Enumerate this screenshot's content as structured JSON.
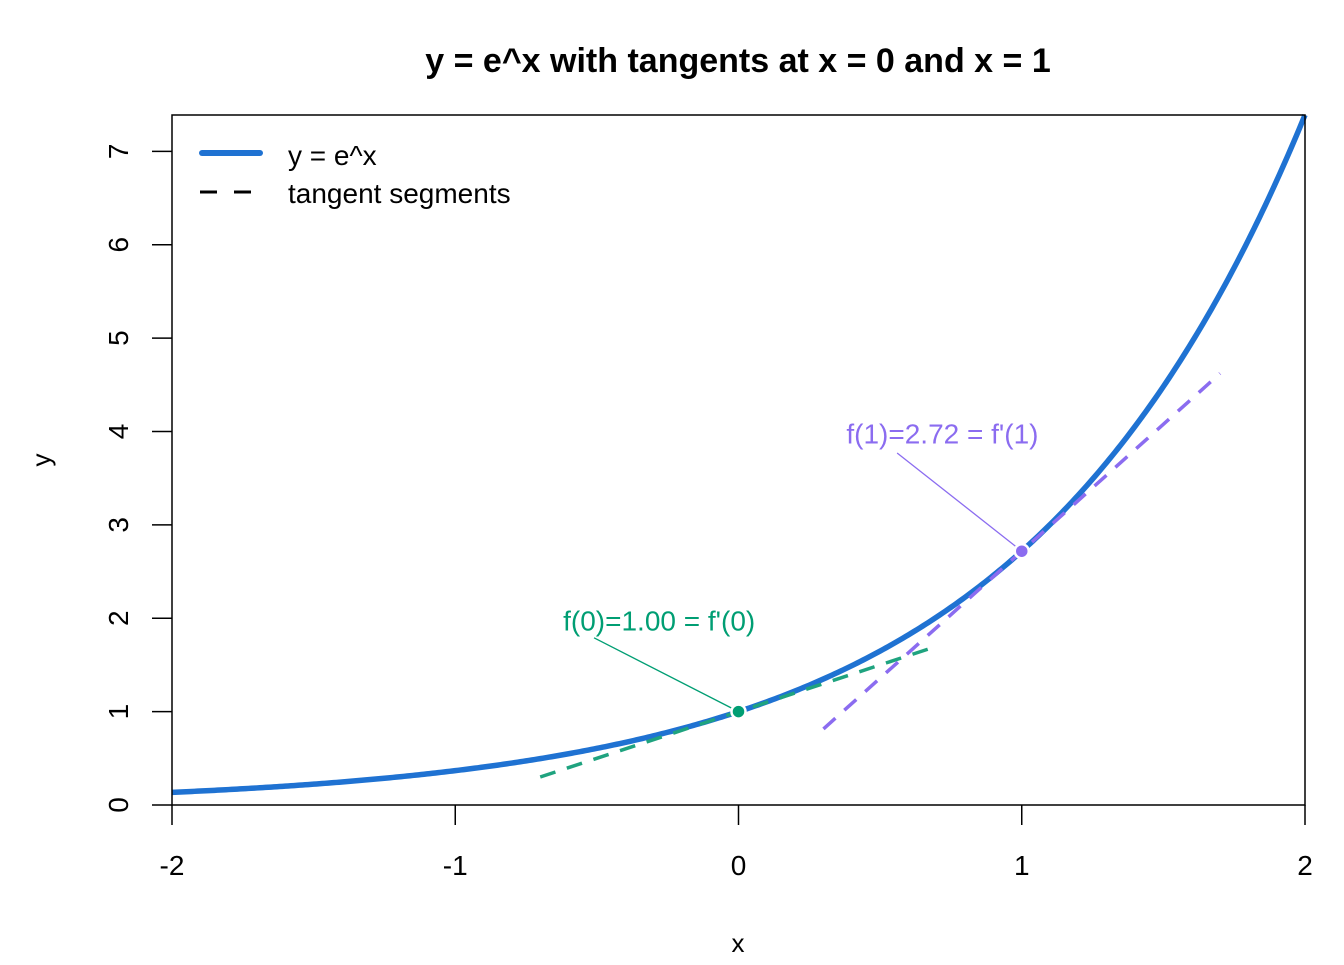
{
  "chart_data": {
    "type": "line",
    "title": "y = e^x with tangents at x = 0 and x = 1",
    "xlabel": "x",
    "ylabel": "y",
    "xlim": [
      -2,
      2
    ],
    "ylim": [
      0,
      7.389
    ],
    "xticks": [
      "-2",
      "-1",
      "0",
      "1",
      "2"
    ],
    "xtick_values": [
      -2,
      -1,
      0,
      1,
      2
    ],
    "yticks": [
      "0",
      "1",
      "2",
      "3",
      "4",
      "5",
      "6",
      "7"
    ],
    "ytick_values": [
      0,
      1,
      2,
      3,
      4,
      5,
      6,
      7
    ],
    "grid": false,
    "legend_position": "top-left",
    "legend": [
      {
        "label": "y = e^x",
        "style": "solid",
        "color": "#1F72D2"
      },
      {
        "label": "tangent segments",
        "style": "dashed",
        "color": "#000000"
      }
    ],
    "series": [
      {
        "name": "y = e^x",
        "function": "exp",
        "x_range": [
          -2,
          2
        ],
        "color": "#1F72D2"
      },
      {
        "name": "tangent at x=0",
        "x": [
          -0.7,
          0.7
        ],
        "y": [
          0.3,
          1.7
        ],
        "color": "#1FA37F"
      },
      {
        "name": "tangent at x=1",
        "x": [
          0.3,
          1.7
        ],
        "y": [
          0.815,
          4.621
        ],
        "color": "#8B6CF0"
      }
    ],
    "points": [
      {
        "x": 0,
        "y": 1,
        "color": "#009E73"
      },
      {
        "x": 1,
        "y": 2.718,
        "color": "#8B6CF0"
      }
    ],
    "annotations": [
      {
        "text": "f(0)=1.00 = f'(0)",
        "x": -0.28,
        "y": 1.87,
        "color": "#009E73",
        "points_to": [
          0,
          1
        ]
      },
      {
        "text": "f(1)=2.72 = f'(1)",
        "x": 0.72,
        "y": 3.87,
        "color": "#8B6CF0",
        "points_to": [
          1,
          2.718
        ]
      }
    ]
  }
}
